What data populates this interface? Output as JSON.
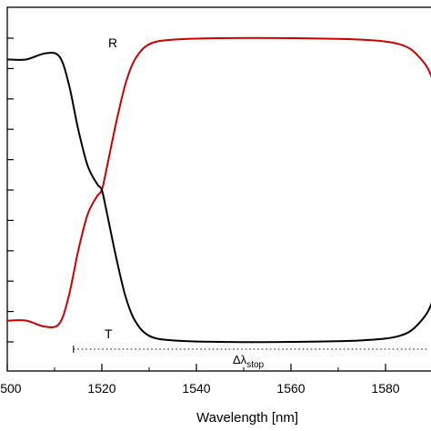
{
  "chart_data": {
    "type": "line",
    "xlabel": "Wavelength [nm]",
    "ylabel": "",
    "xlim": [
      1500,
      1595
    ],
    "ylim": [
      0,
      1
    ],
    "x_ticks": [
      1500,
      1520,
      1540,
      1560,
      1580
    ],
    "x_tick_labels": [
      "1500",
      "1520",
      "1540",
      "1560",
      "1580"
    ],
    "y_tick_count": 12,
    "grid": false,
    "series": [
      {
        "name": "R",
        "color": "#cc0000",
        "x": [
          1500,
          1504,
          1508,
          1511,
          1513,
          1515,
          1517,
          1519,
          1520,
          1521,
          1523,
          1525,
          1527,
          1530,
          1535,
          1545,
          1560,
          1575,
          1583,
          1587,
          1590,
          1592,
          1593,
          1594,
          1595
        ],
        "y": [
          0.07,
          0.07,
          0.05,
          0.06,
          0.15,
          0.3,
          0.42,
          0.48,
          0.5,
          0.57,
          0.72,
          0.85,
          0.93,
          0.98,
          0.995,
          1.0,
          1.0,
          0.995,
          0.98,
          0.94,
          0.86,
          0.68,
          0.55,
          0.5,
          0.5
        ]
      },
      {
        "name": "T",
        "color": "#000000",
        "x": [
          1500,
          1504,
          1508,
          1511,
          1513,
          1515,
          1517,
          1519,
          1520,
          1521,
          1523,
          1525,
          1527,
          1530,
          1535,
          1545,
          1560,
          1575,
          1583,
          1587,
          1590,
          1592,
          1593,
          1594,
          1595
        ],
        "y": [
          0.93,
          0.93,
          0.95,
          0.94,
          0.85,
          0.7,
          0.58,
          0.52,
          0.5,
          0.43,
          0.28,
          0.15,
          0.07,
          0.02,
          0.005,
          0.0,
          0.0,
          0.005,
          0.02,
          0.06,
          0.14,
          0.32,
          0.45,
          0.5,
          0.5
        ]
      }
    ],
    "annotations": {
      "R": "R",
      "T": "T",
      "stopband": {
        "x_range": [
          1514,
          1595
        ],
        "y": -0.025,
        "label_main": "Δλ",
        "label_sub": "stop"
      }
    }
  }
}
